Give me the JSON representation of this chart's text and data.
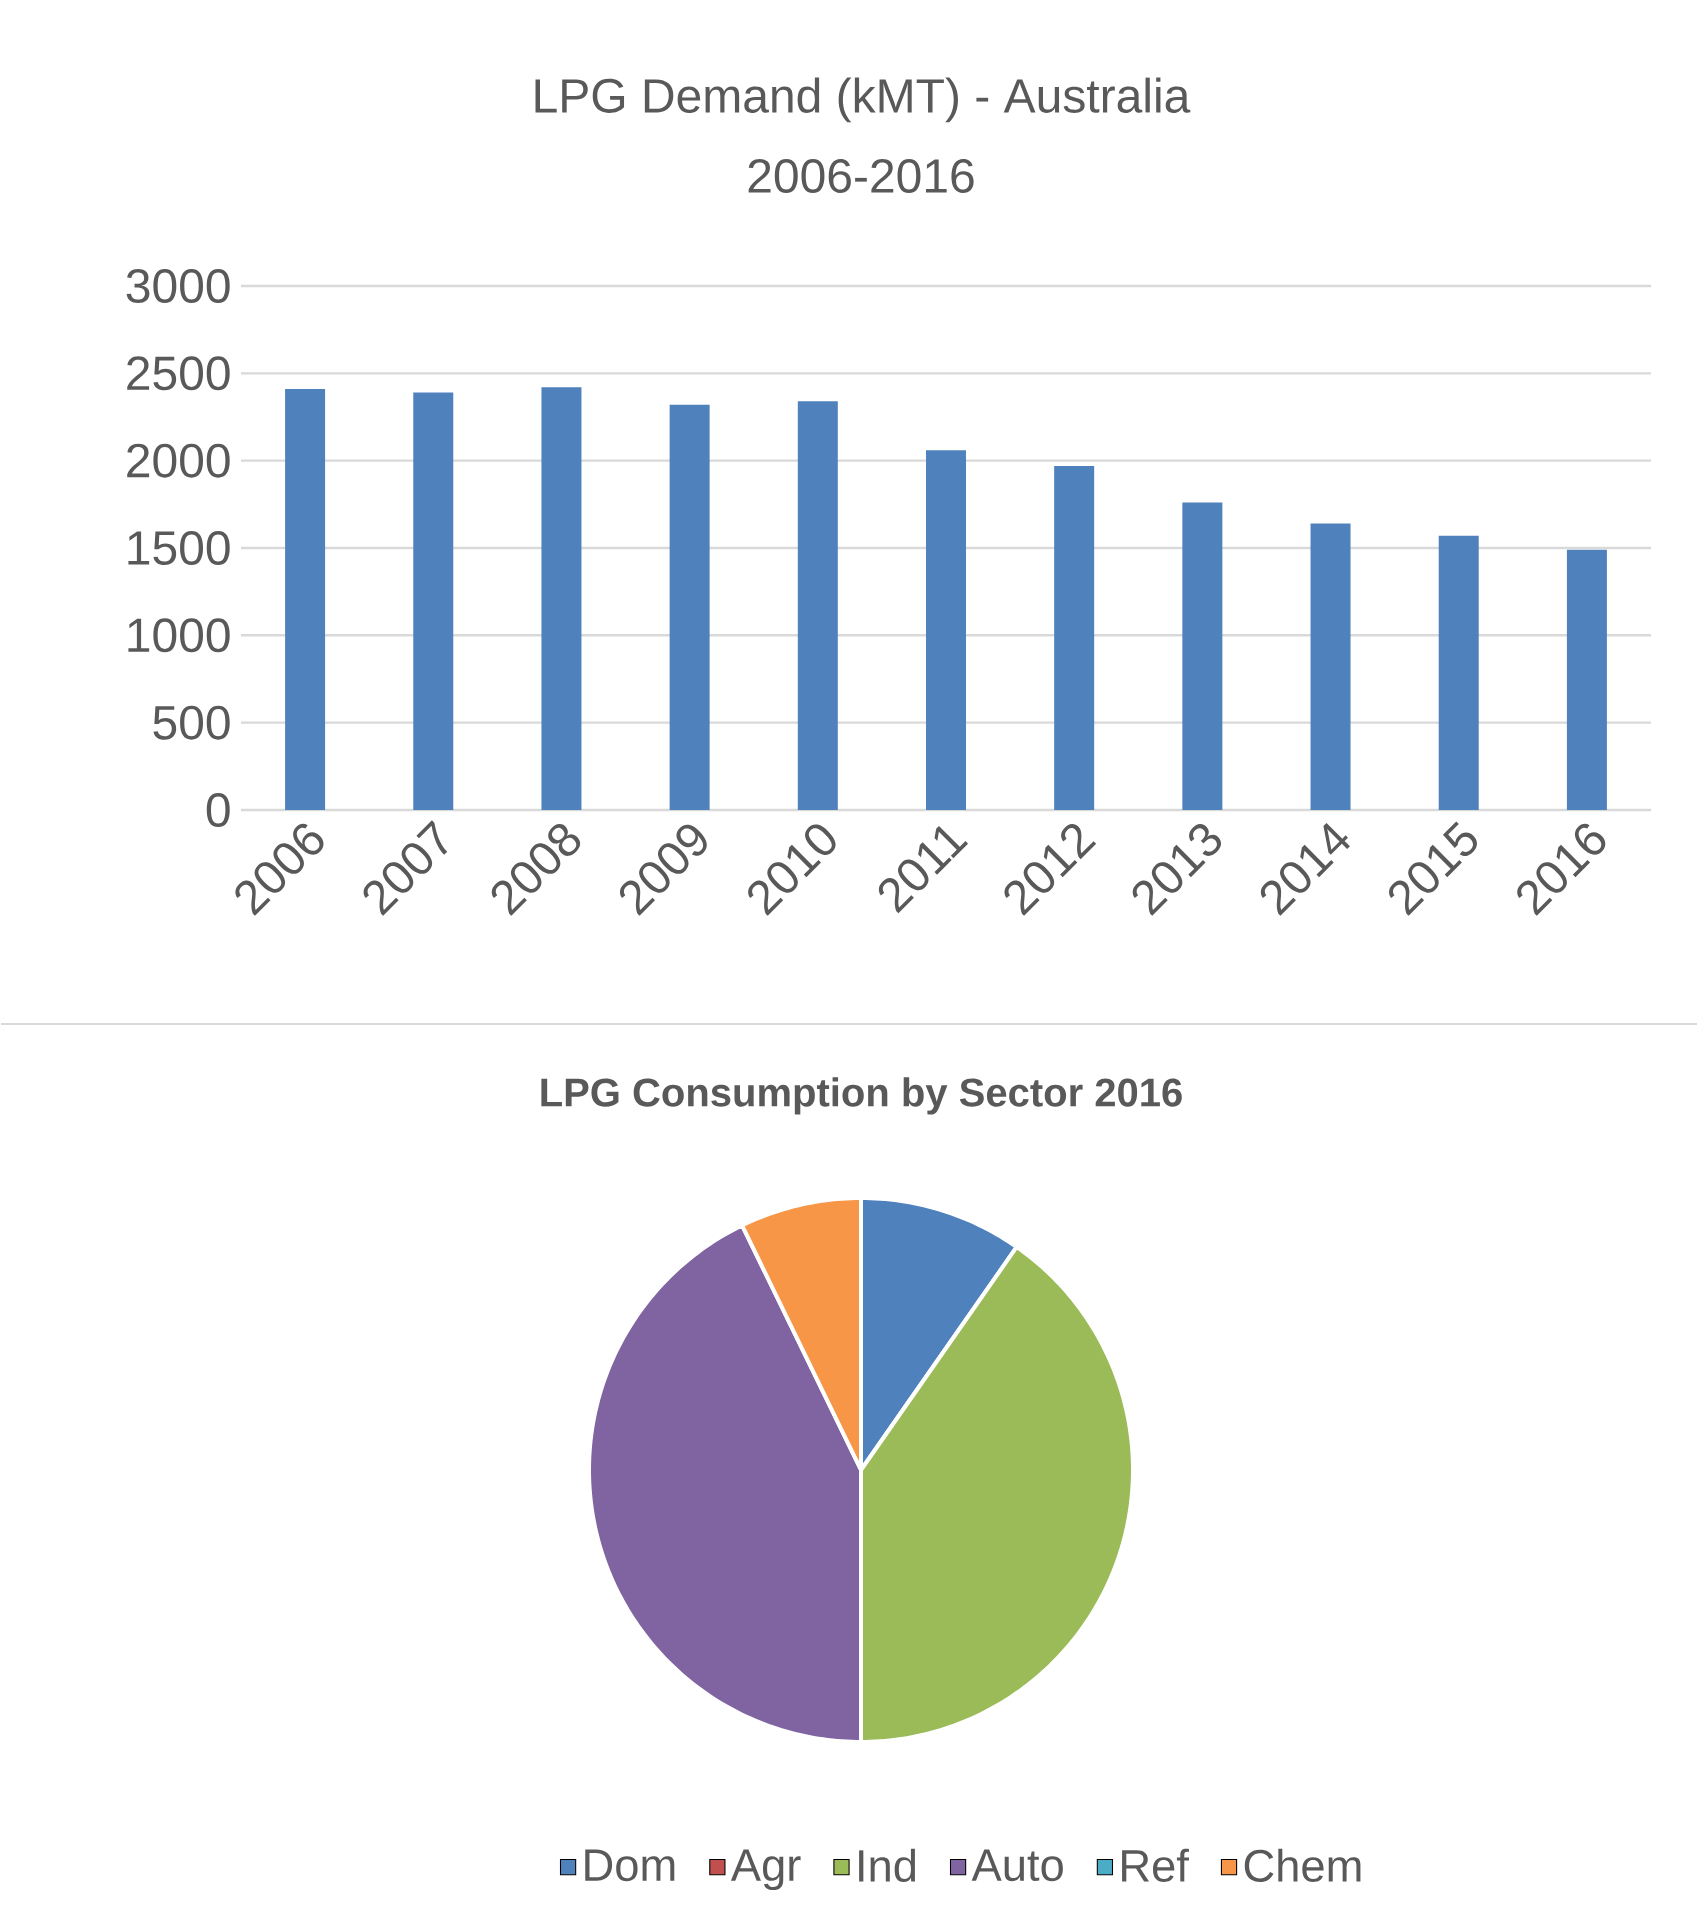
{
  "chart_data": [
    {
      "type": "bar",
      "title": "LPG Demand (kMT) - Australia",
      "subtitle": "2006-2016",
      "categories": [
        "2006",
        "2007",
        "2008",
        "2009",
        "2010",
        "2011",
        "2012",
        "2013",
        "2014",
        "2015",
        "2016"
      ],
      "values": [
        2410,
        2390,
        2420,
        2320,
        2340,
        2060,
        1970,
        1760,
        1640,
        1570,
        1490
      ],
      "color": "#4f81bd",
      "ylim": [
        0,
        3000
      ],
      "yticks": [
        0,
        500,
        1000,
        1500,
        2000,
        2500,
        3000
      ],
      "grid": "y"
    },
    {
      "type": "pie",
      "title": "LPG Consumption by Sector 2016",
      "categories": [
        "Dom",
        "Agr",
        "Ind",
        "Auto",
        "Ref",
        "Chem"
      ],
      "values": [
        9.7,
        0,
        40.3,
        42.8,
        0,
        7.2
      ],
      "colors": [
        "#4f81bd",
        "#c0504d",
        "#9bbb59",
        "#8064a2",
        "#4bacc6",
        "#f79646"
      ],
      "legend": "bottom"
    }
  ]
}
